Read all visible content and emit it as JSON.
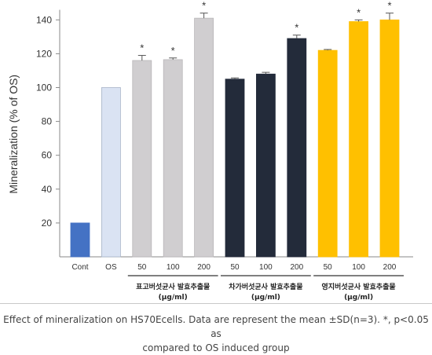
{
  "chart_data": {
    "type": "bar",
    "ylabel": "Mineralization (% of OS)",
    "ylim": [
      0,
      145
    ],
    "yticks": [
      20,
      40,
      60,
      80,
      100,
      120,
      140
    ],
    "grid": false,
    "bars": [
      {
        "label": "Cont",
        "value": 20,
        "error": 0,
        "sig": "",
        "color": "#4472c4"
      },
      {
        "label": "OS",
        "value": 100,
        "error": 0,
        "sig": "",
        "color": "#dae3f3"
      },
      {
        "label": "50",
        "value": 116,
        "error": 3,
        "sig": "*",
        "color": "#d0ced0"
      },
      {
        "label": "100",
        "value": 116.5,
        "error": 1,
        "sig": "*",
        "color": "#d0ced0"
      },
      {
        "label": "200",
        "value": 141,
        "error": 3,
        "sig": "*",
        "color": "#d0ced0"
      },
      {
        "label": "50",
        "value": 105,
        "error": 0.7,
        "sig": "",
        "color": "#232b3a"
      },
      {
        "label": "100",
        "value": 108,
        "error": 1,
        "sig": "",
        "color": "#232b3a"
      },
      {
        "label": "200",
        "value": 129,
        "error": 2,
        "sig": "*",
        "color": "#232b3a"
      },
      {
        "label": "50",
        "value": 122,
        "error": 0.5,
        "sig": "",
        "color": "#ffc000"
      },
      {
        "label": "100",
        "value": 139,
        "error": 1,
        "sig": "*",
        "color": "#ffc000"
      },
      {
        "label": "200",
        "value": 140,
        "error": 4,
        "sig": "*",
        "color": "#ffc000"
      }
    ],
    "groups": [
      {
        "line1": "표고버섯균사 발효추출물",
        "line2": "(μg/ml)",
        "bars": [
          2,
          4
        ]
      },
      {
        "line1": "차가버섯균사 발효추출물",
        "line2": "(μg/ml)",
        "bars": [
          5,
          7
        ]
      },
      {
        "line1": "영지버섯균사 발효추출물",
        "line2": "(μg/ml)",
        "bars": [
          8,
          10
        ]
      }
    ]
  },
  "caption": {
    "line1": "Effect of mineralization on HS70Ecells. Data are represent the mean ±SD(n=3). *, p<0.05 as",
    "line2": "compared to OS induced group"
  }
}
